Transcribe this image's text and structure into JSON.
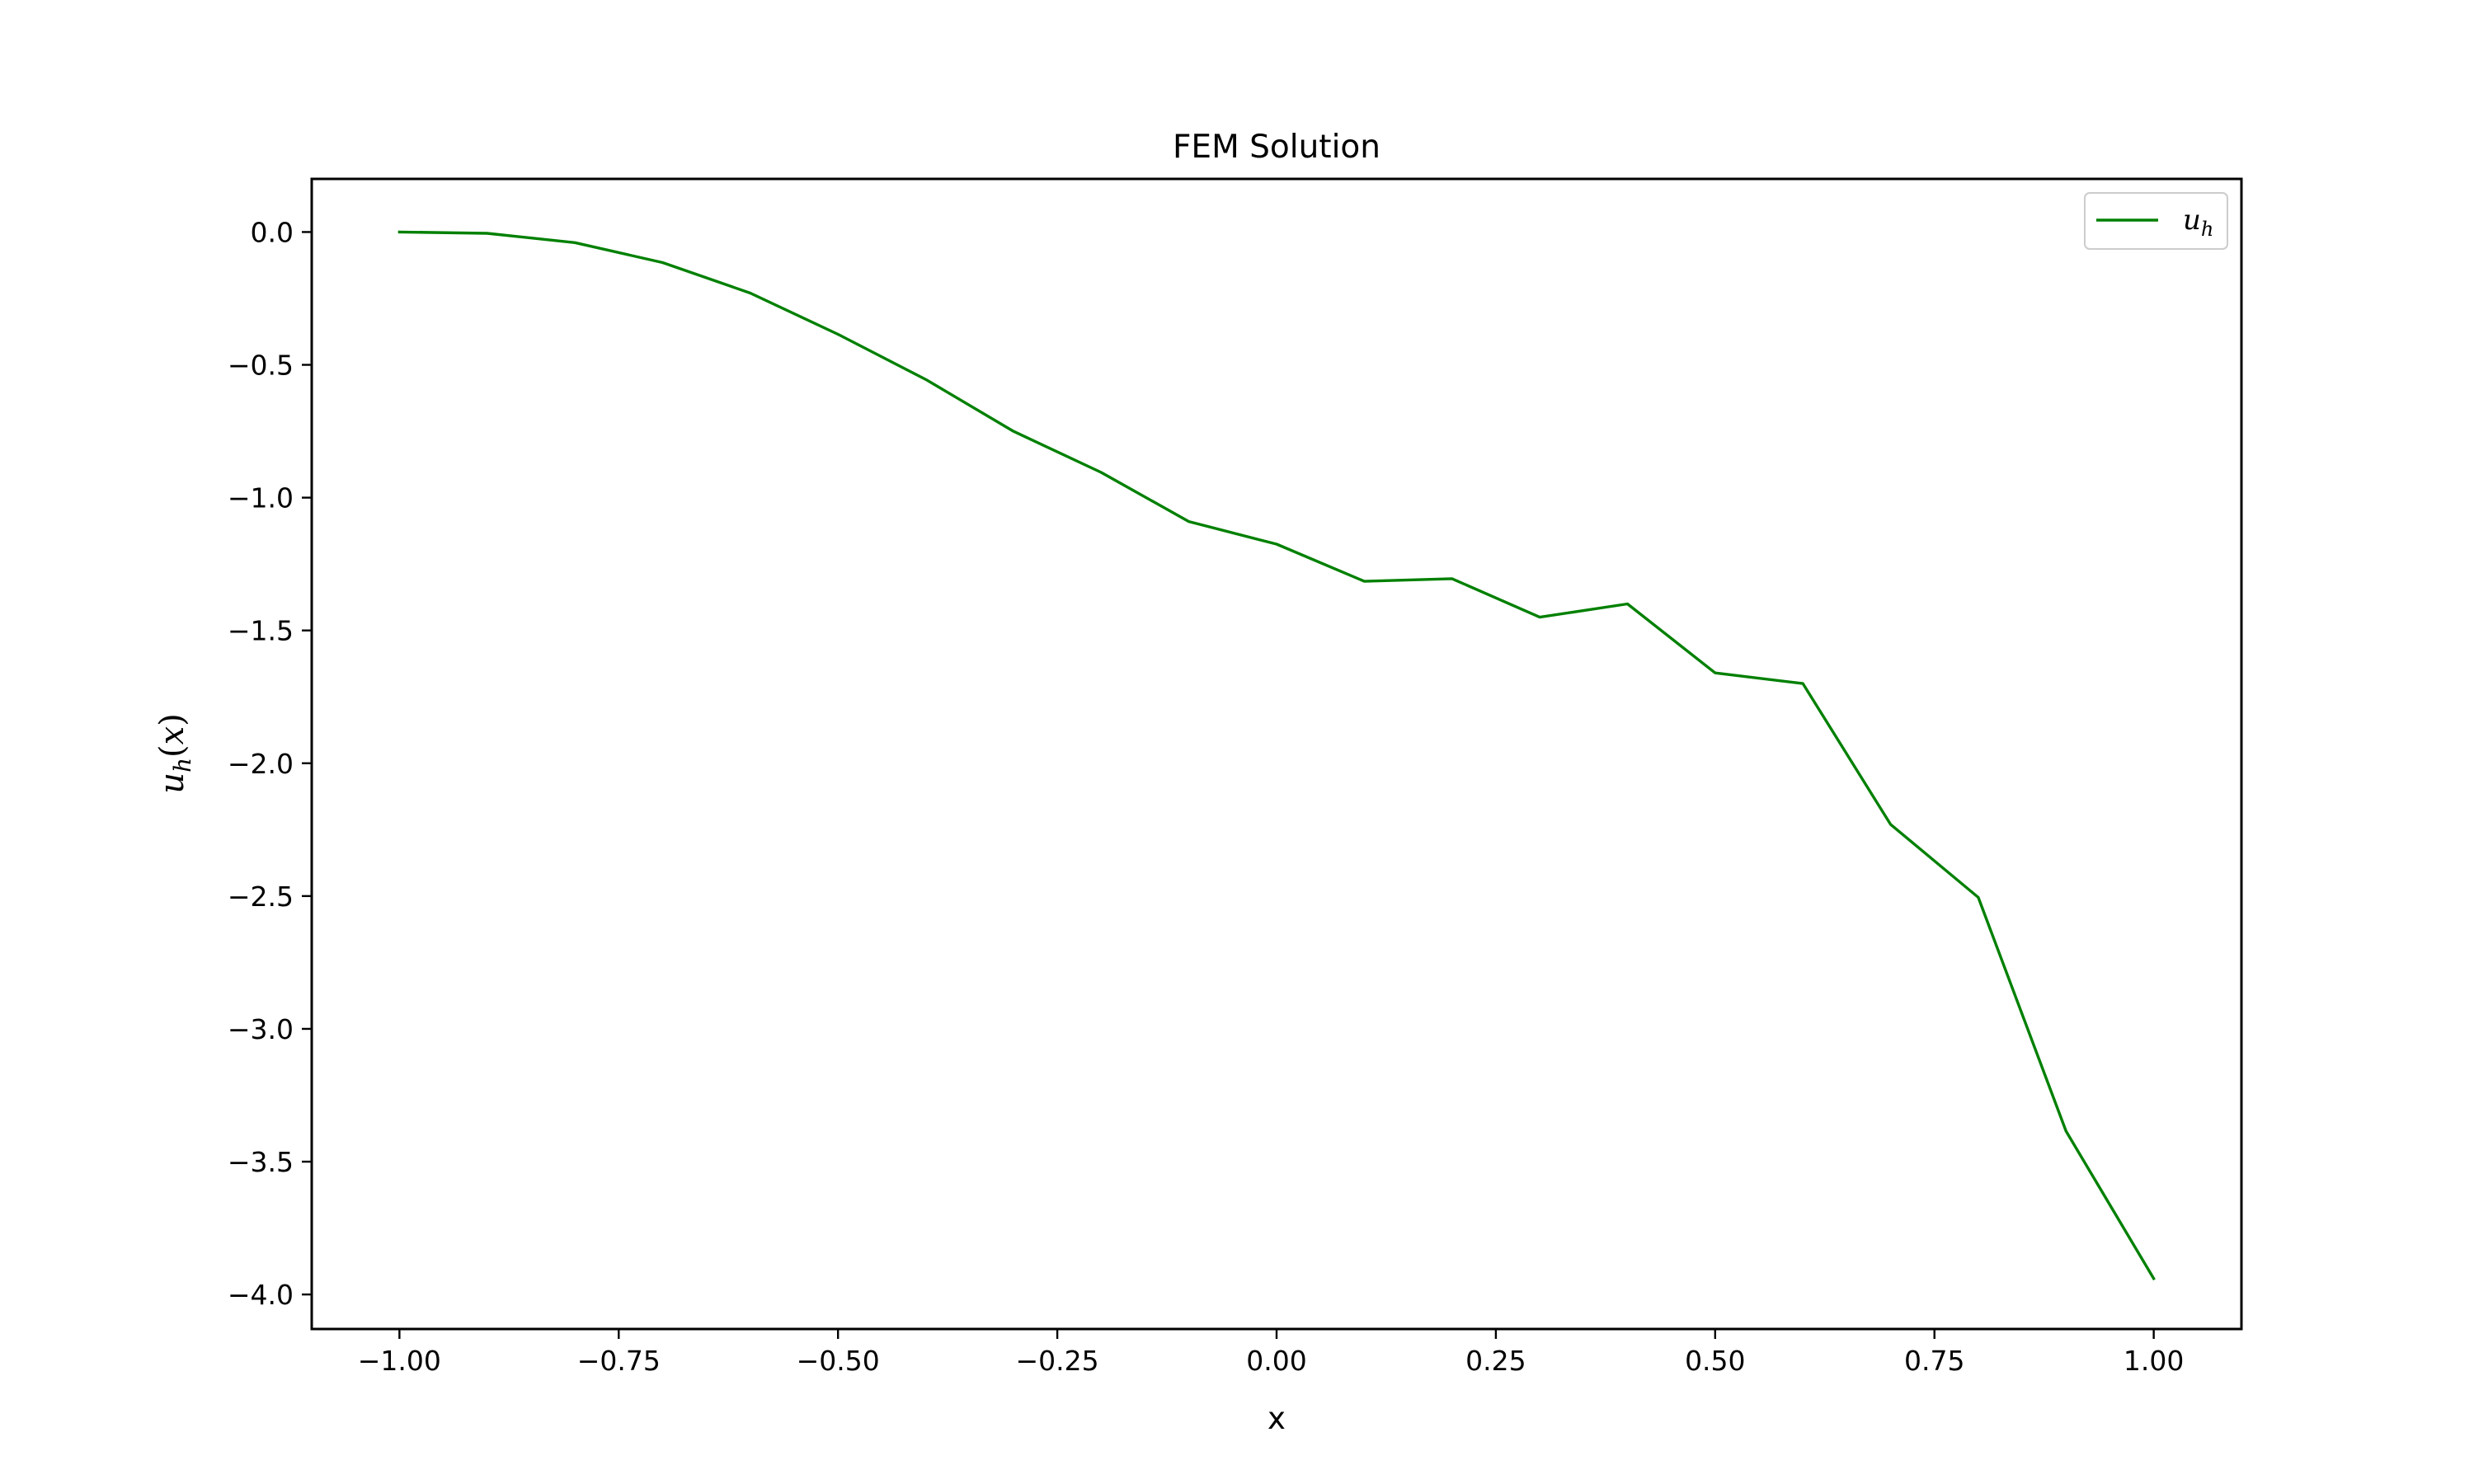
{
  "chart_data": {
    "type": "line",
    "title": "FEM Solution",
    "xlabel": "x",
    "ylabel": "u_h(x)",
    "xlim": [
      -1.1,
      1.1
    ],
    "ylim": [
      -4.13,
      0.2
    ],
    "xticks": [
      -1.0,
      -0.75,
      -0.5,
      -0.25,
      0.0,
      0.25,
      0.5,
      0.75,
      1.0
    ],
    "xtick_labels": [
      "−1.00",
      "−0.75",
      "−0.50",
      "−0.25",
      "0.00",
      "0.25",
      "0.50",
      "0.75",
      "1.00"
    ],
    "yticks": [
      0.0,
      -0.5,
      -1.0,
      -1.5,
      -2.0,
      -2.5,
      -3.0,
      -3.5,
      -4.0
    ],
    "ytick_labels": [
      "0.0",
      "−0.5",
      "−1.0",
      "−1.5",
      "−2.0",
      "−2.5",
      "−3.0",
      "−3.5",
      "−4.0"
    ],
    "grid": false,
    "legend_position": "top-right",
    "series": [
      {
        "name": "u_h",
        "color": "#008000",
        "x": [
          -1.0,
          -0.9,
          -0.8,
          -0.7,
          -0.6,
          -0.5,
          -0.4,
          -0.3,
          -0.2,
          -0.1,
          0.0,
          0.1,
          0.2,
          0.3,
          0.4,
          0.5,
          0.6,
          0.7,
          0.8,
          0.9,
          1.0
        ],
        "y": [
          0.0,
          -0.005,
          -0.04,
          -0.115,
          -0.23,
          -0.385,
          -0.555,
          -0.75,
          -0.905,
          -1.09,
          -1.175,
          -1.315,
          -1.305,
          -1.45,
          -1.4,
          -1.66,
          -1.7,
          -2.23,
          -2.505,
          -3.385,
          -3.94
        ]
      }
    ]
  }
}
